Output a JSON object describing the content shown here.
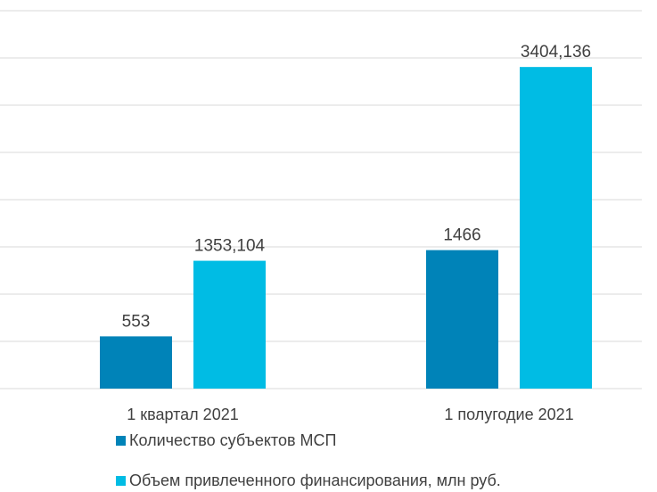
{
  "chart_data": {
    "type": "bar",
    "categories": [
      "1 квартал 2021",
      "1 полугодие 2021"
    ],
    "series": [
      {
        "name": "Количество субъектов МСП",
        "color": "#0083b8",
        "values": [
          553,
          1466
        ]
      },
      {
        "name": "Объем привлеченного финансирования, млн руб.",
        "color": "#00bce4",
        "values": [
          1353.104,
          3404.136
        ],
        "value_labels": [
          "1353,104",
          "3404,136"
        ]
      }
    ],
    "ylim": [
      0,
      4000
    ],
    "yticks": [
      0,
      500,
      1000,
      1500,
      2000,
      2500,
      3000,
      3500,
      4000
    ],
    "grid": true,
    "legend": "bottom"
  }
}
